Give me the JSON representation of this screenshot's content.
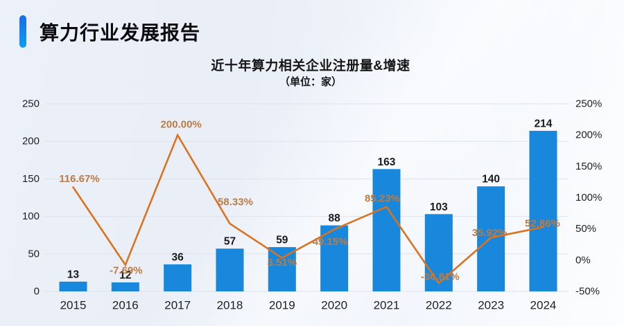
{
  "header": {
    "title": "算力行业发展报告"
  },
  "chart": {
    "title": "近十年算力相关企业注册量&增速",
    "subtitle": "（单位：家）"
  },
  "chart_data": {
    "type": "bar+line combo",
    "title": "近十年算力相关企业注册量&增速",
    "subtitle": "（单位：家）",
    "categories": [
      "2015",
      "2016",
      "2017",
      "2018",
      "2019",
      "2020",
      "2021",
      "2022",
      "2023",
      "2024"
    ],
    "series": [
      {
        "name": "企业注册量（家）",
        "type": "bar",
        "axis": "left",
        "values": [
          13,
          12,
          36,
          57,
          59,
          88,
          163,
          103,
          140,
          214
        ],
        "value_labels": [
          "13",
          "12",
          "36",
          "57",
          "59",
          "88",
          "163",
          "103",
          "140",
          "214"
        ],
        "color": "#1987dc"
      },
      {
        "name": "增速",
        "type": "line",
        "axis": "right",
        "values": [
          116.67,
          -7.69,
          200.0,
          58.33,
          3.51,
          49.15,
          85.23,
          -36.81,
          35.92,
          52.86
        ],
        "value_labels": [
          "116.67%",
          "-7.69%",
          "200.00%",
          "58.33%",
          "3.51%",
          "49.15%",
          "85.23%",
          "-36.81%",
          "35.92%",
          "52.86%"
        ],
        "color": "#d9731f",
        "label_color": "#bd7b42"
      }
    ],
    "left_axis": {
      "min": 0,
      "max": 250,
      "step": 50,
      "ticks": [
        "0",
        "50",
        "100",
        "150",
        "200",
        "250"
      ]
    },
    "right_axis": {
      "min": -50,
      "max": 250,
      "step": 50,
      "ticks": [
        "-50%",
        "0%",
        "50%",
        "100%",
        "150%",
        "200%",
        "250%"
      ]
    },
    "grid": true,
    "legend": false,
    "colors": {
      "bar": "#1987dc",
      "line": "#d9731f",
      "percent_label": "#bd7b42",
      "value_label": "#1a1a1a",
      "axis_label": "#1f1f1f",
      "gridline": "#dde2eb",
      "accent_gradient_top": "#1b6ce8",
      "accent_gradient_bottom": "#0b9ff2"
    }
  }
}
